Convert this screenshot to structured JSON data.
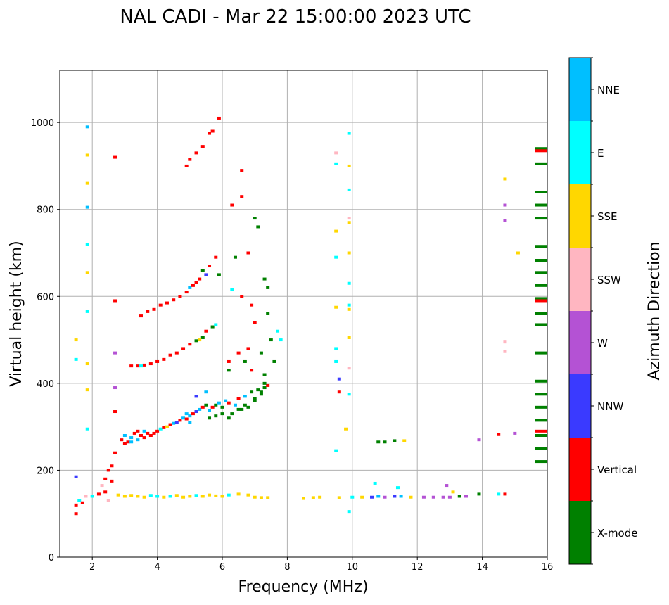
{
  "chart_data": {
    "type": "scatter",
    "title": "NAL CADI - Mar 22 15:00:00 2023 UTC",
    "xlabel": "Frequency (MHz)",
    "ylabel": "Virtual height (km)",
    "xlim": [
      1,
      16
    ],
    "ylim": [
      0,
      1120
    ],
    "xticks": [
      2,
      4,
      6,
      8,
      10,
      12,
      14,
      16
    ],
    "yticks": [
      0,
      200,
      400,
      600,
      800,
      1000
    ],
    "grid": true,
    "colorbar": {
      "label": "Azimuth Direction",
      "position": "right",
      "categories": [
        {
          "name": "X-mode",
          "color": "#008000"
        },
        {
          "name": "Vertical",
          "color": "#ff0000"
        },
        {
          "name": "NNW",
          "color": "#3a3aff"
        },
        {
          "name": "W",
          "color": "#b452d4"
        },
        {
          "name": "SSW",
          "color": "#ffb6c1"
        },
        {
          "name": "SSE",
          "color": "#ffd700"
        },
        {
          "name": "E",
          "color": "#00ffff"
        },
        {
          "name": "NNE",
          "color": "#00bfff"
        }
      ]
    },
    "point_fields": [
      "frequency_mhz",
      "height_km",
      "direction_index"
    ],
    "points": [
      [
        2.9,
        270,
        1
      ],
      [
        3.0,
        280,
        7
      ],
      [
        3.1,
        265,
        1
      ],
      [
        3.2,
        275,
        7
      ],
      [
        3.3,
        285,
        1
      ],
      [
        3.4,
        270,
        7
      ],
      [
        3.5,
        280,
        1
      ],
      [
        3.6,
        275,
        1
      ],
      [
        3.7,
        285,
        1
      ],
      [
        3.8,
        280,
        1
      ],
      [
        3.9,
        285,
        1
      ],
      [
        4.0,
        290,
        1
      ],
      [
        4.1,
        295,
        6
      ],
      [
        4.2,
        298,
        1
      ],
      [
        4.3,
        300,
        5
      ],
      [
        4.4,
        305,
        1
      ],
      [
        4.5,
        308,
        7
      ],
      [
        4.6,
        310,
        2
      ],
      [
        4.7,
        315,
        1
      ],
      [
        4.8,
        320,
        7
      ],
      [
        4.9,
        318,
        1
      ],
      [
        5.0,
        325,
        7
      ],
      [
        5.1,
        330,
        1
      ],
      [
        5.2,
        335,
        2
      ],
      [
        5.3,
        340,
        7
      ],
      [
        5.4,
        345,
        1
      ],
      [
        5.5,
        350,
        0
      ],
      [
        5.6,
        338,
        7
      ],
      [
        5.7,
        345,
        1
      ],
      [
        5.8,
        350,
        0
      ],
      [
        5.9,
        355,
        7
      ],
      [
        6.0,
        345,
        0
      ],
      [
        6.1,
        360,
        7
      ],
      [
        6.2,
        355,
        1
      ],
      [
        6.3,
        330,
        0
      ],
      [
        6.4,
        350,
        7
      ],
      [
        6.5,
        365,
        1
      ],
      [
        6.6,
        340,
        0
      ],
      [
        6.7,
        370,
        7
      ],
      [
        6.8,
        345,
        0
      ],
      [
        6.9,
        380,
        0
      ],
      [
        7.0,
        360,
        0
      ],
      [
        7.1,
        385,
        0
      ],
      [
        7.2,
        375,
        0
      ],
      [
        7.3,
        390,
        0
      ],
      [
        7.4,
        395,
        1
      ],
      [
        5.2,
        370,
        2
      ],
      [
        5.5,
        380,
        7
      ],
      [
        4.9,
        330,
        7
      ],
      [
        5.0,
        310,
        7
      ],
      [
        3.2,
        265,
        7
      ],
      [
        3.4,
        290,
        1
      ],
      [
        3.6,
        290,
        7
      ],
      [
        3.0,
        262,
        1
      ],
      [
        5.6,
        320,
        0
      ],
      [
        5.8,
        325,
        0
      ],
      [
        6.0,
        330,
        0
      ],
      [
        6.2,
        320,
        0
      ],
      [
        6.5,
        340,
        0
      ],
      [
        6.7,
        350,
        0
      ],
      [
        7.0,
        365,
        0
      ],
      [
        7.2,
        380,
        0
      ],
      [
        7.3,
        400,
        0
      ],
      [
        3.2,
        440,
        1
      ],
      [
        3.4,
        440,
        1
      ],
      [
        3.6,
        442,
        1
      ],
      [
        3.8,
        445,
        1
      ],
      [
        4.0,
        450,
        1
      ],
      [
        4.2,
        455,
        1
      ],
      [
        4.4,
        465,
        1
      ],
      [
        4.6,
        470,
        1
      ],
      [
        4.8,
        480,
        1
      ],
      [
        5.0,
        490,
        1
      ],
      [
        5.2,
        498,
        0
      ],
      [
        5.4,
        505,
        0
      ],
      [
        5.5,
        520,
        1
      ],
      [
        5.7,
        530,
        0
      ],
      [
        5.8,
        535,
        6
      ],
      [
        3.5,
        440,
        6
      ],
      [
        5.3,
        500,
        5
      ],
      [
        3.5,
        555,
        1
      ],
      [
        3.7,
        565,
        1
      ],
      [
        3.9,
        570,
        1
      ],
      [
        4.1,
        580,
        1
      ],
      [
        4.3,
        585,
        1
      ],
      [
        4.5,
        592,
        1
      ],
      [
        4.7,
        600,
        1
      ],
      [
        4.9,
        610,
        1
      ],
      [
        5.0,
        620,
        7
      ],
      [
        5.1,
        625,
        1
      ],
      [
        5.2,
        632,
        1
      ],
      [
        5.3,
        640,
        1
      ],
      [
        5.5,
        650,
        2
      ],
      [
        5.6,
        670,
        1
      ],
      [
        5.8,
        690,
        1
      ],
      [
        5.9,
        650,
        0
      ],
      [
        5.4,
        660,
        0
      ],
      [
        4.9,
        900,
        1
      ],
      [
        5.0,
        915,
        1
      ],
      [
        5.2,
        930,
        1
      ],
      [
        5.4,
        945,
        1
      ],
      [
        5.6,
        975,
        1
      ],
      [
        5.7,
        980,
        1
      ],
      [
        5.9,
        1010,
        1
      ],
      [
        6.3,
        810,
        1
      ],
      [
        6.6,
        890,
        1
      ],
      [
        6.6,
        830,
        1
      ],
      [
        6.4,
        690,
        0
      ],
      [
        6.6,
        600,
        1
      ],
      [
        6.9,
        580,
        1
      ],
      [
        7.0,
        540,
        1
      ],
      [
        7.1,
        760,
        0
      ],
      [
        7.0,
        780,
        0
      ],
      [
        6.8,
        700,
        1
      ],
      [
        7.3,
        640,
        0
      ],
      [
        7.4,
        620,
        0
      ],
      [
        7.4,
        560,
        0
      ],
      [
        7.5,
        500,
        0
      ],
      [
        7.6,
        450,
        0
      ],
      [
        7.8,
        500,
        6
      ],
      [
        7.7,
        520,
        6
      ],
      [
        6.2,
        450,
        1
      ],
      [
        6.2,
        430,
        0
      ],
      [
        6.5,
        470,
        1
      ],
      [
        6.9,
        430,
        1
      ],
      [
        7.2,
        470,
        0
      ],
      [
        7.3,
        420,
        0
      ],
      [
        6.3,
        615,
        6
      ],
      [
        6.7,
        450,
        0
      ],
      [
        6.8,
        480,
        1
      ],
      [
        2.8,
        143,
        5
      ],
      [
        3.0,
        140,
        5
      ],
      [
        3.2,
        142,
        5
      ],
      [
        3.4,
        140,
        5
      ],
      [
        3.6,
        138,
        5
      ],
      [
        3.8,
        142,
        6
      ],
      [
        4.0,
        140,
        6
      ],
      [
        4.2,
        138,
        5
      ],
      [
        4.4,
        140,
        6
      ],
      [
        4.6,
        142,
        5
      ],
      [
        4.8,
        138,
        5
      ],
      [
        5.0,
        140,
        5
      ],
      [
        5.2,
        142,
        6
      ],
      [
        5.4,
        140,
        5
      ],
      [
        5.6,
        143,
        5
      ],
      [
        5.8,
        141,
        5
      ],
      [
        6.0,
        140,
        5
      ],
      [
        6.2,
        143,
        6
      ],
      [
        6.5,
        145,
        5
      ],
      [
        6.8,
        143,
        5
      ],
      [
        7.0,
        138,
        5
      ],
      [
        7.2,
        137,
        5
      ],
      [
        7.4,
        137,
        5
      ],
      [
        8.5,
        135,
        5
      ],
      [
        8.8,
        137,
        5
      ],
      [
        9.0,
        138,
        5
      ],
      [
        9.6,
        137,
        5
      ],
      [
        10.0,
        138,
        6
      ],
      [
        10.3,
        138,
        5
      ],
      [
        10.6,
        138,
        2
      ],
      [
        10.8,
        140,
        7
      ],
      [
        11.0,
        138,
        3
      ],
      [
        11.3,
        140,
        2
      ],
      [
        11.5,
        140,
        7
      ],
      [
        11.8,
        138,
        5
      ],
      [
        12.2,
        138,
        3
      ],
      [
        12.5,
        138,
        3
      ],
      [
        12.8,
        138,
        3
      ],
      [
        13.0,
        138,
        3
      ],
      [
        13.3,
        140,
        0
      ],
      [
        13.5,
        140,
        3
      ],
      [
        13.9,
        145,
        0
      ],
      [
        14.5,
        145,
        6
      ],
      [
        14.7,
        145,
        1
      ],
      [
        10.7,
        170,
        6
      ],
      [
        11.4,
        160,
        6
      ],
      [
        12.9,
        165,
        3
      ],
      [
        13.1,
        150,
        5
      ],
      [
        1.5,
        120,
        1
      ],
      [
        1.6,
        130,
        6
      ],
      [
        1.7,
        125,
        1
      ],
      [
        1.8,
        140,
        4
      ],
      [
        2.0,
        140,
        6
      ],
      [
        2.2,
        145,
        1
      ],
      [
        2.3,
        165,
        4
      ],
      [
        2.4,
        180,
        1
      ],
      [
        2.4,
        150,
        1
      ],
      [
        2.5,
        200,
        1
      ],
      [
        2.5,
        130,
        4
      ],
      [
        2.6,
        175,
        1
      ],
      [
        2.6,
        210,
        1
      ],
      [
        1.5,
        185,
        2
      ],
      [
        1.5,
        100,
        1
      ],
      [
        1.85,
        990,
        7
      ],
      [
        1.85,
        925,
        5
      ],
      [
        1.85,
        860,
        5
      ],
      [
        1.85,
        805,
        7
      ],
      [
        1.85,
        720,
        6
      ],
      [
        1.85,
        655,
        5
      ],
      [
        1.85,
        565,
        6
      ],
      [
        1.85,
        445,
        5
      ],
      [
        1.85,
        385,
        5
      ],
      [
        1.85,
        295,
        6
      ],
      [
        1.5,
        500,
        5
      ],
      [
        1.5,
        455,
        6
      ],
      [
        2.7,
        920,
        1
      ],
      [
        2.7,
        590,
        1
      ],
      [
        2.7,
        470,
        3
      ],
      [
        2.7,
        390,
        3
      ],
      [
        2.7,
        335,
        1
      ],
      [
        2.7,
        240,
        1
      ],
      [
        9.5,
        930,
        4
      ],
      [
        9.5,
        905,
        6
      ],
      [
        9.5,
        750,
        5
      ],
      [
        9.5,
        690,
        6
      ],
      [
        9.5,
        575,
        5
      ],
      [
        9.5,
        480,
        6
      ],
      [
        9.5,
        450,
        6
      ],
      [
        9.5,
        245,
        6
      ],
      [
        9.6,
        410,
        2
      ],
      [
        9.6,
        380,
        1
      ],
      [
        9.9,
        975,
        6
      ],
      [
        9.9,
        900,
        5
      ],
      [
        9.9,
        845,
        6
      ],
      [
        9.9,
        780,
        4
      ],
      [
        9.9,
        770,
        5
      ],
      [
        9.9,
        700,
        5
      ],
      [
        9.9,
        630,
        6
      ],
      [
        9.9,
        580,
        6
      ],
      [
        9.9,
        570,
        5
      ],
      [
        9.9,
        505,
        5
      ],
      [
        9.9,
        435,
        4
      ],
      [
        9.9,
        375,
        6
      ],
      [
        9.9,
        105,
        6
      ],
      [
        9.8,
        295,
        5
      ],
      [
        10.8,
        265,
        0
      ],
      [
        11.0,
        265,
        0
      ],
      [
        11.3,
        268,
        0
      ],
      [
        11.6,
        268,
        5
      ],
      [
        13.9,
        270,
        3
      ],
      [
        14.5,
        282,
        1
      ],
      [
        15.0,
        285,
        3
      ],
      [
        14.7,
        870,
        5
      ],
      [
        14.7,
        810,
        3
      ],
      [
        14.7,
        775,
        3
      ],
      [
        15.1,
        700,
        5
      ],
      [
        14.7,
        495,
        4
      ],
      [
        14.7,
        473,
        4
      ],
      [
        15.85,
        940,
        0
      ],
      [
        15.85,
        935,
        1
      ],
      [
        15.85,
        905,
        0
      ],
      [
        15.85,
        840,
        0
      ],
      [
        15.85,
        810,
        0
      ],
      [
        15.85,
        780,
        0
      ],
      [
        15.85,
        715,
        0
      ],
      [
        15.85,
        683,
        0
      ],
      [
        15.85,
        655,
        0
      ],
      [
        15.85,
        625,
        0
      ],
      [
        15.85,
        595,
        0
      ],
      [
        15.85,
        590,
        1
      ],
      [
        15.85,
        560,
        0
      ],
      [
        15.85,
        535,
        0
      ],
      [
        15.85,
        470,
        0
      ],
      [
        15.85,
        405,
        0
      ],
      [
        15.85,
        375,
        0
      ],
      [
        15.85,
        345,
        0
      ],
      [
        15.85,
        315,
        0
      ],
      [
        15.85,
        290,
        1
      ],
      [
        15.85,
        280,
        0
      ],
      [
        15.85,
        250,
        0
      ],
      [
        15.85,
        220,
        0
      ]
    ]
  }
}
